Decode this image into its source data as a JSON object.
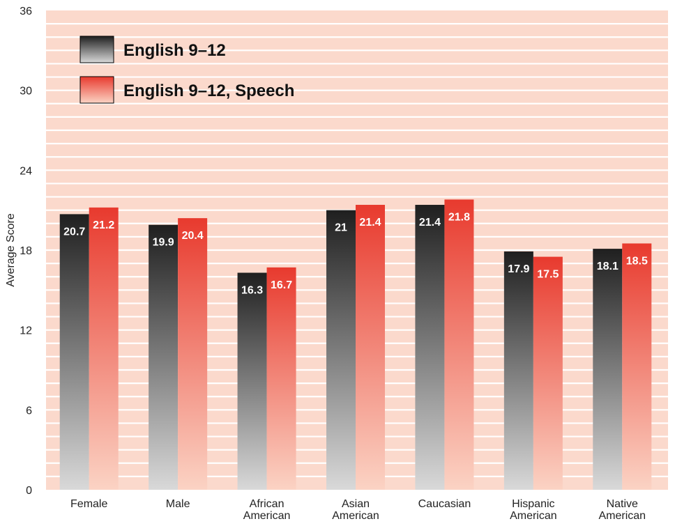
{
  "chart_data": {
    "type": "bar",
    "ylabel": "Average Score",
    "ylim": [
      0,
      36
    ],
    "yticks": [
      0,
      6,
      12,
      18,
      24,
      30,
      36
    ],
    "grid": true,
    "legend_position": "top-left",
    "categories": [
      [
        "Female"
      ],
      [
        "Male"
      ],
      [
        "African",
        "American"
      ],
      [
        "Asian",
        "American"
      ],
      [
        "Caucasian"
      ],
      [
        "Hispanic",
        "American"
      ],
      [
        "Native",
        "American"
      ]
    ],
    "series": [
      {
        "name": "English 9–12",
        "values": [
          20.7,
          19.9,
          16.3,
          21,
          21.4,
          17.9,
          18.1
        ]
      },
      {
        "name": "English 9–12, Speech",
        "values": [
          21.2,
          20.4,
          16.7,
          21.4,
          21.8,
          17.5,
          18.5
        ]
      }
    ],
    "colors": {
      "background": "#fbd9cc",
      "grid": "#ffffff",
      "series1_top": "#1f1f1f",
      "series1_bottom": "#d9d9d9",
      "series2_top": "#e83a2e",
      "series2_bottom": "#fbd3c4",
      "label": "#ffffff",
      "text": "#222222"
    }
  }
}
